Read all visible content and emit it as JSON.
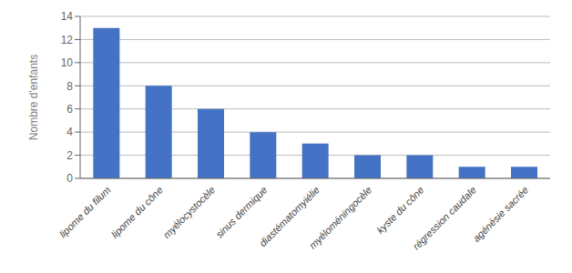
{
  "chart_data": {
    "type": "bar",
    "categories": [
      "lipome du filum",
      "lipome du cône",
      "myélocystocèle",
      "sinus dermique",
      "diastématomyiélie",
      "myéloméningocèle",
      "kyste du cône",
      "régression caudale",
      "agénésie sacrée"
    ],
    "values": [
      13,
      8,
      6,
      4,
      3,
      2,
      2,
      1,
      1
    ],
    "color": "#4472C4",
    "ylabel": "Nombre d'enfants",
    "ylim": [
      0,
      14
    ],
    "yticks": [
      0,
      2,
      4,
      6,
      8,
      10,
      12,
      14
    ],
    "grid": true
  }
}
